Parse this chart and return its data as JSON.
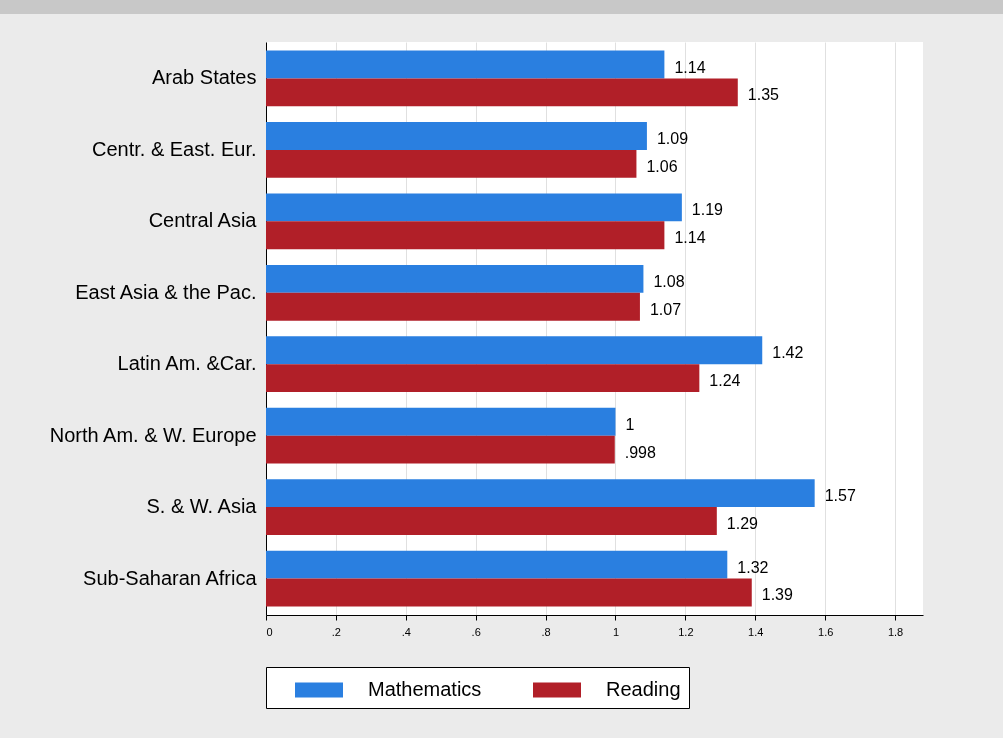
{
  "chart_data": {
    "type": "bar",
    "orientation": "horizontal",
    "categories": [
      "Arab States",
      "Centr. & East. Eur.",
      "Central Asia",
      "East Asia & the Pac.",
      "Latin Am. &Car.",
      "North Am. & W. Europe",
      "S. & W. Asia",
      "Sub-Saharan Africa"
    ],
    "series": [
      {
        "name": "Mathematics",
        "color": "#2a7fe0",
        "values": [
          1.14,
          1.09,
          1.19,
          1.08,
          1.42,
          1,
          1.57,
          1.32
        ],
        "value_labels": [
          "1.14",
          "1.09",
          "1.19",
          "1.08",
          "1.42",
          "1",
          "1.57",
          "1.32"
        ]
      },
      {
        "name": "Reading",
        "color": "#b11f28",
        "values": [
          1.35,
          1.06,
          1.14,
          1.07,
          1.24,
          0.998,
          1.29,
          1.39
        ],
        "value_labels": [
          "1.35",
          "1.06",
          "1.14",
          "1.07",
          "1.24",
          ".998",
          "1.29",
          "1.39"
        ]
      }
    ],
    "xlim": [
      0,
      1.88
    ],
    "xticks": [
      0,
      {
        "value": 0.2,
        "label": ".2"
      },
      {
        "value": 0.4,
        "label": ".4"
      },
      {
        "value": 0.6,
        "label": ".6"
      },
      {
        "value": 0.8,
        "label": ".8"
      },
      1,
      1.2,
      1.4,
      1.6,
      1.8
    ],
    "grid": "x",
    "legend": "bottom"
  }
}
